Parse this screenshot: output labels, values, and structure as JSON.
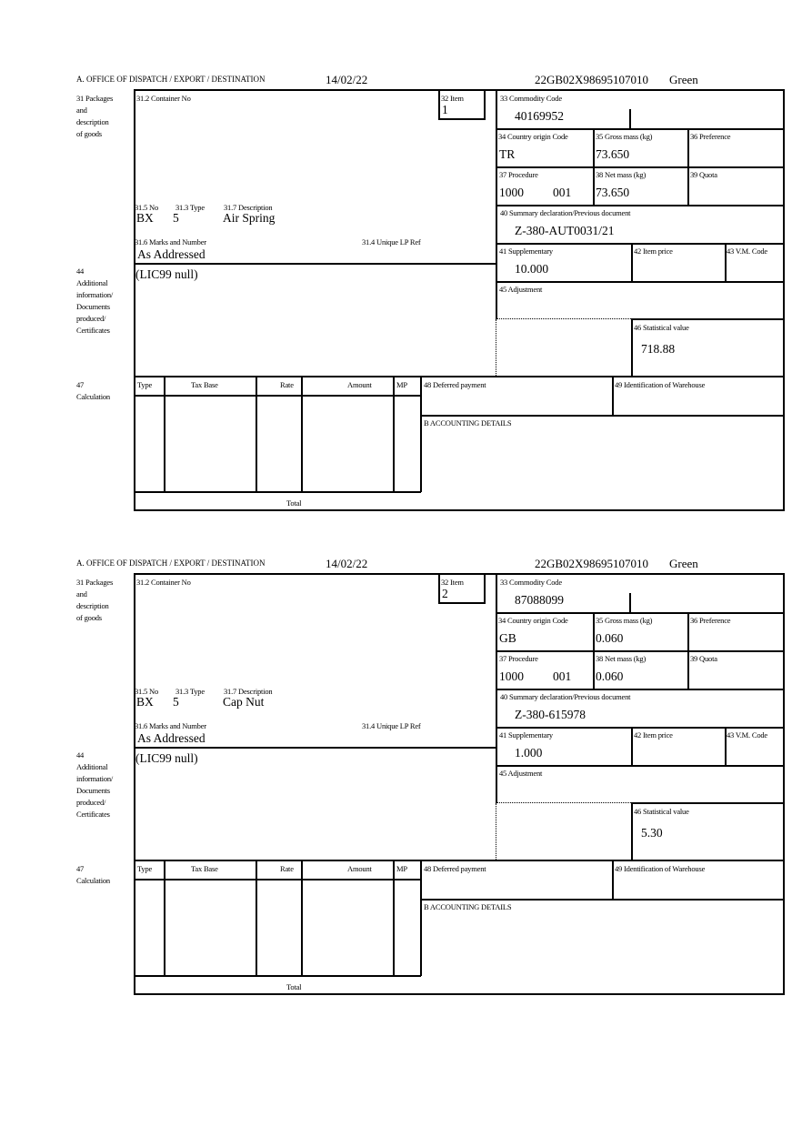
{
  "labels": {
    "office": "A. OFFICE OF DISPATCH / EXPORT / DESTINATION",
    "packages": [
      "31 Packages",
      "and",
      "description",
      "of goods"
    ],
    "container_no": "31.2 Container No",
    "item": "32 Item",
    "commodity_code": "33 Commodity Code",
    "country_origin": "34 Country origin Code",
    "gross_mass": "35 Gross mass (kg)",
    "preference": "36 Preference",
    "procedure": "37 Procedure",
    "net_mass": "38 Net mass (kg)",
    "quota": "39 Quota",
    "summary_decl": "40 Summary declaration/Previous document",
    "supplementary": "41 Supplementary",
    "item_price": "42 Item price",
    "vm_code": "43 V.M. Code",
    "adjustment": "45 Adjustment",
    "statistical_value": "46 Statistical value",
    "no": "31.5 No",
    "type": "31.3 Type",
    "description": "31.7 Description",
    "marks": "31.6 Marks and Number",
    "unique_lp": "31.4 Unique LP Ref",
    "additional": [
      "44",
      "Additional",
      "information/",
      "Documents",
      "produced/",
      "Certificates"
    ],
    "calculation": [
      "47",
      "Calculation"
    ],
    "calc_columns": [
      "Type",
      "Tax Base",
      "Rate",
      "Amount",
      "MP"
    ],
    "total": "Total",
    "deferred_payment": "48 Deferred payment",
    "warehouse": "49 Identification of Warehouse",
    "accounting": "B ACCOUNTING DETAILS"
  },
  "forms": [
    {
      "date": "14/02/22",
      "reference": "22GB02X98695107010",
      "route": "Green",
      "item": "1",
      "commodity_code": "40169952",
      "country_origin": "TR",
      "gross_mass": "73.650",
      "procedure": "1000",
      "procedure_ext": "001",
      "net_mass": "73.650",
      "summary_decl": "Z-380-AUT0031/21",
      "supplementary": "10.000",
      "statistical_value": "718.88",
      "no": "BX",
      "type": "5",
      "description": "Air Spring",
      "marks": "As Addressed",
      "additional": "(LIC99 null)"
    },
    {
      "date": "14/02/22",
      "reference": "22GB02X98695107010",
      "route": "Green",
      "item": "2",
      "commodity_code": "87088099",
      "country_origin": "GB",
      "gross_mass": "0.060",
      "procedure": "1000",
      "procedure_ext": "001",
      "net_mass": "0.060",
      "summary_decl": "Z-380-615978",
      "supplementary": "1.000",
      "statistical_value": "5.30",
      "no": "BX",
      "type": "5",
      "description": "Cap Nut",
      "marks": "As Addressed",
      "additional": "(LIC99 null)"
    }
  ]
}
